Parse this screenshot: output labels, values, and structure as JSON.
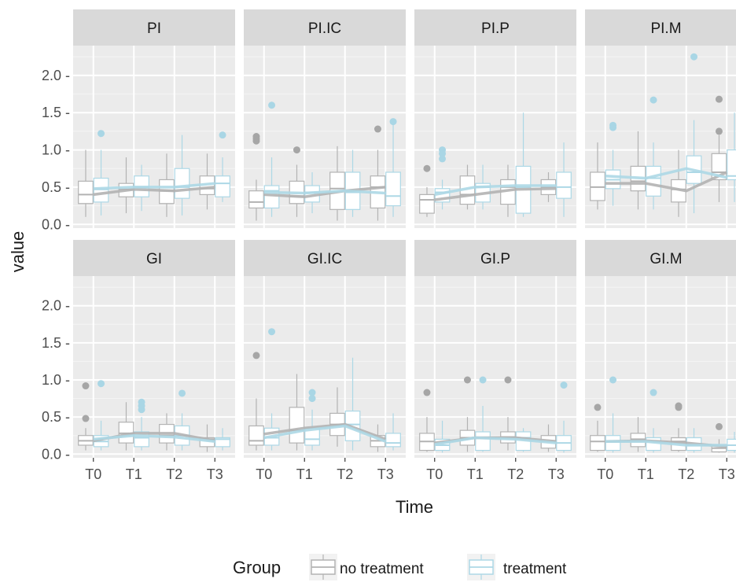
{
  "chart_data": {
    "type": "boxplot-faceted",
    "xlabel": "Time",
    "ylabel": "value",
    "categories": [
      "T0",
      "T1",
      "T2",
      "T3"
    ],
    "ylim": [
      -0.05,
      2.4
    ],
    "yticks": [
      0.0,
      0.5,
      1.0,
      1.5,
      2.0
    ],
    "ytick_labels": [
      "0.0 -",
      "0.5 -",
      "1.0 -",
      "1.5 -",
      "2.0 -"
    ],
    "grid": true,
    "legend": {
      "title": "Group",
      "placement": "bottom",
      "entries": [
        {
          "key": "no_treatment",
          "label": "no treatment",
          "color": "#b3b3b3"
        },
        {
          "key": "treatment",
          "label": "treatment",
          "color": "#add8e6"
        }
      ]
    },
    "panels": [
      {
        "title": "PI",
        "no_treatment": {
          "boxes": [
            [
              0.1,
              0.28,
              0.4,
              0.58,
              1.0
            ],
            [
              0.15,
              0.37,
              0.47,
              0.55,
              0.9
            ],
            [
              0.1,
              0.28,
              0.45,
              0.6,
              0.95
            ],
            [
              0.2,
              0.4,
              0.48,
              0.65,
              0.95
            ]
          ],
          "outliers": [
            [],
            [],
            [],
            []
          ],
          "medians_line": [
            0.4,
            0.47,
            0.45,
            0.5
          ]
        },
        "treatment": {
          "boxes": [
            [
              0.12,
              0.3,
              0.47,
              0.62,
              1.0
            ],
            [
              0.18,
              0.37,
              0.5,
              0.65,
              0.8
            ],
            [
              0.12,
              0.35,
              0.5,
              0.75,
              1.2
            ],
            [
              0.3,
              0.37,
              0.55,
              0.65,
              0.9
            ]
          ],
          "outliers": [
            [
              1.22
            ],
            [],
            [],
            [
              1.2
            ]
          ],
          "medians_line": [
            0.48,
            0.5,
            0.5,
            0.55
          ]
        }
      },
      {
        "title": "PI.IC",
        "no_treatment": {
          "boxes": [
            [
              0.05,
              0.22,
              0.3,
              0.45,
              0.6
            ],
            [
              0.1,
              0.28,
              0.38,
              0.58,
              0.8
            ],
            [
              0.05,
              0.2,
              0.48,
              0.7,
              1.05
            ],
            [
              0.05,
              0.22,
              0.5,
              0.65,
              1.0
            ]
          ],
          "outliers": [
            [
              1.12,
              1.15,
              1.18
            ],
            [
              1.0
            ],
            [],
            [
              1.28
            ]
          ],
          "medians_line": [
            0.4,
            0.37,
            0.45,
            0.5
          ]
        },
        "treatment": {
          "boxes": [
            [
              0.1,
              0.22,
              0.45,
              0.52,
              0.9
            ],
            [
              0.15,
              0.3,
              0.43,
              0.52,
              0.7
            ],
            [
              0.1,
              0.2,
              0.43,
              0.7,
              1.0
            ],
            [
              0.1,
              0.25,
              0.38,
              0.7,
              1.4
            ]
          ],
          "outliers": [
            [
              1.6
            ],
            [],
            [],
            [
              1.38
            ]
          ],
          "medians_line": [
            0.43,
            0.42,
            0.45,
            0.42
          ]
        }
      },
      {
        "title": "PI.P",
        "no_treatment": {
          "boxes": [
            [
              0.1,
              0.15,
              0.33,
              0.4,
              0.5
            ],
            [
              0.2,
              0.27,
              0.4,
              0.65,
              0.8
            ],
            [
              0.1,
              0.27,
              0.5,
              0.6,
              0.8
            ],
            [
              0.3,
              0.4,
              0.5,
              0.6,
              0.7
            ]
          ],
          "outliers": [
            [
              0.75
            ],
            [],
            [],
            []
          ],
          "medians_line": [
            0.33,
            0.4,
            0.47,
            0.48
          ]
        },
        "treatment": {
          "boxes": [
            [
              0.2,
              0.3,
              0.43,
              0.48,
              0.6
            ],
            [
              0.2,
              0.3,
              0.5,
              0.55,
              0.8
            ],
            [
              0.1,
              0.15,
              0.5,
              0.78,
              1.5
            ],
            [
              0.1,
              0.35,
              0.5,
              0.7,
              1.1
            ]
          ],
          "outliers": [
            [
              0.88,
              0.95,
              1.0
            ],
            [],
            [],
            []
          ],
          "medians_line": [
            0.4,
            0.5,
            0.52,
            0.52
          ]
        }
      },
      {
        "title": "PI.M",
        "no_treatment": {
          "boxes": [
            [
              0.2,
              0.32,
              0.5,
              0.7,
              1.1
            ],
            [
              0.2,
              0.45,
              0.58,
              0.78,
              1.25
            ],
            [
              0.1,
              0.3,
              0.47,
              0.6,
              1.0
            ],
            [
              0.3,
              0.6,
              0.7,
              0.95,
              1.2
            ]
          ],
          "outliers": [
            [],
            [],
            [],
            [
              1.25,
              1.68
            ]
          ],
          "medians_line": [
            0.55,
            0.55,
            0.45,
            0.7
          ]
        },
        "treatment": {
          "boxes": [
            [
              0.25,
              0.48,
              0.6,
              0.73,
              1.0
            ],
            [
              0.2,
              0.38,
              0.62,
              0.78,
              1.1
            ],
            [
              0.15,
              0.55,
              0.7,
              0.92,
              1.4
            ],
            [
              0.3,
              0.6,
              0.65,
              1.0,
              1.5
            ]
          ],
          "outliers": [
            [
              1.3,
              1.33
            ],
            [
              1.67
            ],
            [
              2.25
            ],
            []
          ],
          "medians_line": [
            0.65,
            0.62,
            0.75,
            0.63
          ]
        }
      },
      {
        "title": "GI",
        "no_treatment": {
          "boxes": [
            [
              0.05,
              0.12,
              0.18,
              0.25,
              0.35
            ],
            [
              0.05,
              0.15,
              0.28,
              0.43,
              0.7
            ],
            [
              0.05,
              0.15,
              0.25,
              0.4,
              0.55
            ],
            [
              0.03,
              0.1,
              0.2,
              0.22,
              0.4
            ]
          ],
          "outliers": [
            [
              0.48,
              0.92
            ],
            [],
            [],
            []
          ],
          "medians_line": [
            0.18,
            0.28,
            0.28,
            0.18
          ]
        },
        "treatment": {
          "boxes": [
            [
              0.05,
              0.1,
              0.17,
              0.25,
              0.45
            ],
            [
              0.05,
              0.1,
              0.22,
              0.3,
              0.5
            ],
            [
              0.05,
              0.12,
              0.25,
              0.38,
              0.55
            ],
            [
              0.05,
              0.1,
              0.2,
              0.22,
              0.35
            ]
          ],
          "outliers": [
            [
              0.95
            ],
            [
              0.6,
              0.65,
              0.7
            ],
            [
              0.82
            ],
            []
          ],
          "medians_line": [
            0.2,
            0.25,
            0.23,
            0.17
          ]
        }
      },
      {
        "title": "GI.IC",
        "no_treatment": {
          "boxes": [
            [
              0.05,
              0.12,
              0.18,
              0.38,
              0.75
            ],
            [
              0.05,
              0.15,
              0.32,
              0.63,
              1.08
            ],
            [
              0.1,
              0.25,
              0.4,
              0.55,
              0.9
            ],
            [
              0.03,
              0.1,
              0.18,
              0.25,
              0.4
            ]
          ],
          "outliers": [
            [
              1.33
            ],
            [],
            [],
            []
          ],
          "medians_line": [
            0.27,
            0.35,
            0.4,
            0.2
          ]
        },
        "treatment": {
          "boxes": [
            [
              0.05,
              0.12,
              0.22,
              0.35,
              0.55
            ],
            [
              0.05,
              0.12,
              0.2,
              0.35,
              0.6
            ],
            [
              0.05,
              0.18,
              0.4,
              0.58,
              1.3
            ],
            [
              0.05,
              0.1,
              0.15,
              0.28,
              0.55
            ]
          ],
          "outliers": [
            [
              1.65
            ],
            [
              0.75,
              0.83
            ],
            [],
            []
          ],
          "medians_line": [
            0.22,
            0.32,
            0.38,
            0.17
          ]
        }
      },
      {
        "title": "GI.P",
        "no_treatment": {
          "boxes": [
            [
              0.03,
              0.05,
              0.17,
              0.28,
              0.5
            ],
            [
              0.03,
              0.12,
              0.22,
              0.32,
              0.5
            ],
            [
              0.05,
              0.15,
              0.23,
              0.3,
              0.5
            ],
            [
              0.03,
              0.08,
              0.17,
              0.25,
              0.4
            ]
          ],
          "outliers": [
            [
              0.83
            ],
            [
              1.0
            ],
            [
              1.0
            ],
            []
          ],
          "medians_line": [
            0.15,
            0.22,
            0.22,
            0.17
          ]
        },
        "treatment": {
          "boxes": [
            [
              0.02,
              0.05,
              0.12,
              0.2,
              0.45
            ],
            [
              0.03,
              0.05,
              0.22,
              0.3,
              0.65
            ],
            [
              0.03,
              0.05,
              0.22,
              0.3,
              0.35
            ],
            [
              0.02,
              0.05,
              0.15,
              0.25,
              0.45
            ]
          ],
          "outliers": [
            [],
            [
              1.0
            ],
            [],
            [
              0.93
            ]
          ],
          "medians_line": [
            0.13,
            0.22,
            0.2,
            0.15
          ]
        }
      },
      {
        "title": "GI.M",
        "no_treatment": {
          "boxes": [
            [
              0.03,
              0.05,
              0.17,
              0.25,
              0.45
            ],
            [
              0.03,
              0.1,
              0.2,
              0.28,
              0.5
            ],
            [
              0.03,
              0.05,
              0.17,
              0.22,
              0.35
            ],
            [
              0.02,
              0.03,
              0.08,
              0.12,
              0.2
            ]
          ],
          "outliers": [
            [
              0.63
            ],
            [],
            [
              0.63,
              0.65
            ],
            [
              0.37
            ]
          ],
          "medians_line": [
            0.17,
            0.18,
            0.15,
            0.1
          ]
        },
        "treatment": {
          "boxes": [
            [
              0.02,
              0.05,
              0.17,
              0.25,
              0.55
            ],
            [
              0.02,
              0.05,
              0.17,
              0.22,
              0.35
            ],
            [
              0.02,
              0.05,
              0.12,
              0.22,
              0.35
            ],
            [
              0.02,
              0.05,
              0.12,
              0.2,
              0.3
            ]
          ],
          "outliers": [
            [
              1.0
            ],
            [
              0.83
            ],
            [],
            []
          ],
          "medians_line": [
            0.17,
            0.17,
            0.12,
            0.12
          ]
        }
      }
    ]
  }
}
